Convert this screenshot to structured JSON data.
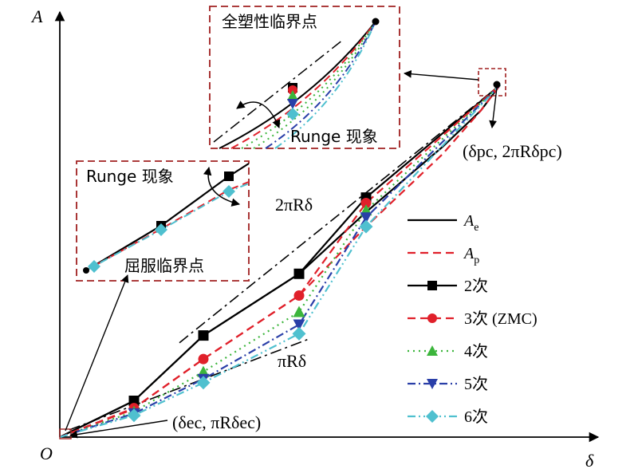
{
  "chart_data": {
    "type": "line",
    "title": "",
    "xlabel": "δ",
    "ylabel": "A",
    "origin_label": "O",
    "xlim": [
      0,
      1
    ],
    "ylim": [
      0,
      1
    ],
    "grid": false,
    "legend_position": "right",
    "reference_lines": [
      {
        "name": "2πRδ",
        "x": [
          0.25,
          0.92
        ],
        "y": [
          0.26,
          0.97
        ]
      },
      {
        "name": "πRδ",
        "x": [
          0.02,
          0.52
        ],
        "y": [
          0.02,
          0.27
        ]
      }
    ],
    "series": [
      {
        "name": "A_e",
        "style": "solid",
        "color": "#000000",
        "marker": "none",
        "x": [
          0.0,
          0.155,
          0.3,
          0.5,
          0.64,
          0.8,
          0.88,
          0.92
        ],
        "y": [
          0.0,
          0.1,
          0.28,
          0.45,
          0.62,
          0.8,
          0.9,
          0.97
        ]
      },
      {
        "name": "A_p",
        "style": "dashed",
        "color": "#e0202a",
        "marker": "none",
        "x": [
          0.0,
          0.15,
          0.3,
          0.5,
          0.64,
          0.8,
          0.88,
          0.92
        ],
        "y": [
          0.0,
          0.075,
          0.215,
          0.39,
          0.58,
          0.78,
          0.9,
          0.97
        ]
      },
      {
        "name": "2次",
        "style": "solid",
        "color": "#000000",
        "marker": "square",
        "x": [
          0.0,
          0.155,
          0.3,
          0.5,
          0.64,
          0.92
        ],
        "y": [
          0.0,
          0.1,
          0.28,
          0.45,
          0.66,
          0.97
        ]
      },
      {
        "name": "3次 (ZMC)",
        "style": "dashed",
        "color": "#e0202a",
        "marker": "circle",
        "x": [
          0.0,
          0.155,
          0.3,
          0.5,
          0.64,
          0.92
        ],
        "y": [
          0.0,
          0.08,
          0.215,
          0.39,
          0.645,
          0.97
        ]
      },
      {
        "name": "4次",
        "style": "dotted",
        "color": "#3cb53c",
        "marker": "triangle-up",
        "x": [
          0.0,
          0.155,
          0.3,
          0.5,
          0.64,
          0.92
        ],
        "y": [
          0.0,
          0.07,
          0.18,
          0.345,
          0.625,
          0.97
        ]
      },
      {
        "name": "5次",
        "style": "dashdot",
        "color": "#2a3fa8",
        "marker": "triangle-down",
        "x": [
          0.0,
          0.155,
          0.3,
          0.5,
          0.64,
          0.92
        ],
        "y": [
          0.0,
          0.065,
          0.16,
          0.31,
          0.605,
          0.97
        ]
      },
      {
        "name": "6次",
        "style": "dashdotdot",
        "color": "#4fc0cf",
        "marker": "diamond",
        "x": [
          0.0,
          0.155,
          0.3,
          0.5,
          0.64,
          0.92
        ],
        "y": [
          0.0,
          0.06,
          0.15,
          0.285,
          0.58,
          0.97
        ]
      }
    ],
    "annotations": {
      "inset_top_title": "全塑性临界点",
      "inset_top_runge": "Runge 现象",
      "inset_left_runge": "Runge 现象",
      "inset_left_title": "屈服临界点",
      "label_2piRdelta": "2πRδ",
      "label_piRdelta": "πRδ",
      "point_pc_label": "(δpc, 2πRδpc)",
      "point_ec_label": "(δec, πRδec)"
    }
  },
  "legend": [
    {
      "key": "Ae",
      "label": "A",
      "sub": "e"
    },
    {
      "key": "Ap",
      "label": "A",
      "sub": "p"
    },
    {
      "key": "s2",
      "label": "2次"
    },
    {
      "key": "s3",
      "label": "3次 (ZMC)"
    },
    {
      "key": "s4",
      "label": "4次"
    },
    {
      "key": "s5",
      "label": "5次"
    },
    {
      "key": "s6",
      "label": "6次"
    }
  ],
  "colors": {
    "black": "#000000",
    "red": "#e0202a",
    "green": "#3cb53c",
    "blue": "#2a3fa8",
    "cyan": "#4fc0cf",
    "inset_border": "#a02020"
  }
}
